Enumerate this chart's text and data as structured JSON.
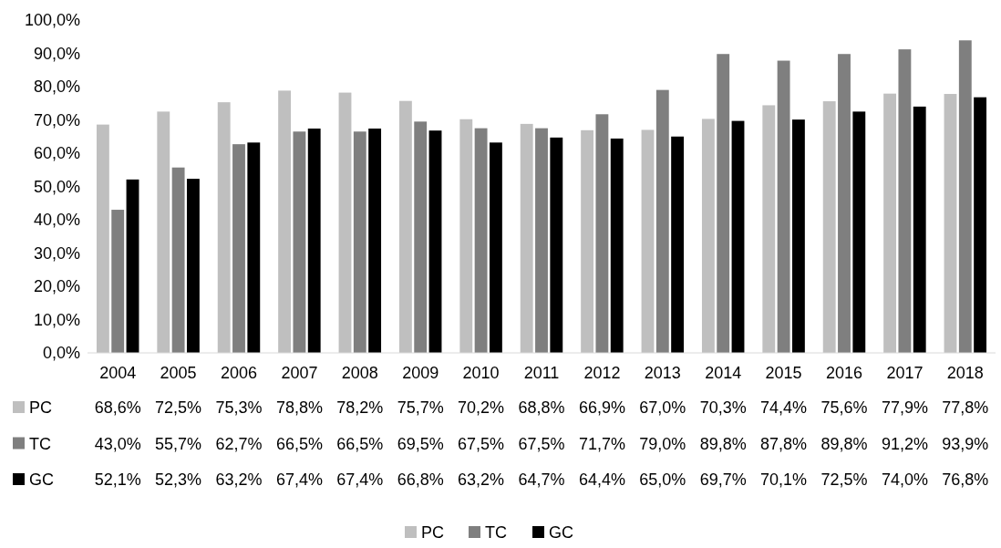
{
  "chart_data": {
    "type": "bar",
    "categories": [
      "2004",
      "2005",
      "2006",
      "2007",
      "2008",
      "2009",
      "2010",
      "2011",
      "2012",
      "2013",
      "2014",
      "2015",
      "2016",
      "2017",
      "2018"
    ],
    "series": [
      {
        "name": "PC",
        "color": "#bfbfbf",
        "values": [
          68.6,
          72.5,
          75.3,
          78.8,
          78.2,
          75.7,
          70.2,
          68.8,
          66.9,
          67.0,
          70.3,
          74.4,
          75.6,
          77.9,
          77.8
        ],
        "value_labels": [
          "68,6%",
          "72,5%",
          "75,3%",
          "78,8%",
          "78,2%",
          "75,7%",
          "70,2%",
          "68,8%",
          "66,9%",
          "67,0%",
          "70,3%",
          "74,4%",
          "75,6%",
          "77,9%",
          "77,8%"
        ]
      },
      {
        "name": "TC",
        "color": "#7f7f7f",
        "values": [
          43.0,
          55.7,
          62.7,
          66.5,
          66.5,
          69.5,
          67.5,
          67.5,
          71.7,
          79.0,
          89.8,
          87.8,
          89.8,
          91.2,
          93.9
        ],
        "value_labels": [
          "43,0%",
          "55,7%",
          "62,7%",
          "66,5%",
          "66,5%",
          "69,5%",
          "67,5%",
          "67,5%",
          "71,7%",
          "79,0%",
          "89,8%",
          "87,8%",
          "89,8%",
          "91,2%",
          "93,9%"
        ]
      },
      {
        "name": "GC",
        "color": "#000000",
        "values": [
          52.1,
          52.3,
          63.2,
          67.4,
          67.4,
          66.8,
          63.2,
          64.7,
          64.4,
          65.0,
          69.7,
          70.1,
          72.5,
          74.0,
          76.8
        ],
        "value_labels": [
          "52,1%",
          "52,3%",
          "63,2%",
          "67,4%",
          "67,4%",
          "66,8%",
          "63,2%",
          "64,7%",
          "64,4%",
          "65,0%",
          "69,7%",
          "70,1%",
          "72,5%",
          "74,0%",
          "76,8%"
        ]
      }
    ],
    "ylim": [
      0,
      100
    ],
    "yticks": [
      {
        "value": 0,
        "label": "0,0%"
      },
      {
        "value": 10,
        "label": "10,0%"
      },
      {
        "value": 20,
        "label": "20,0%"
      },
      {
        "value": 30,
        "label": "30,0%"
      },
      {
        "value": 40,
        "label": "40,0%"
      },
      {
        "value": 50,
        "label": "50,0%"
      },
      {
        "value": 60,
        "label": "60,0%"
      },
      {
        "value": 70,
        "label": "70,0%"
      },
      {
        "value": 80,
        "label": "80,0%"
      },
      {
        "value": 90,
        "label": "90,0%"
      },
      {
        "value": 100,
        "label": "100,0%"
      }
    ],
    "legend": "bottom"
  }
}
